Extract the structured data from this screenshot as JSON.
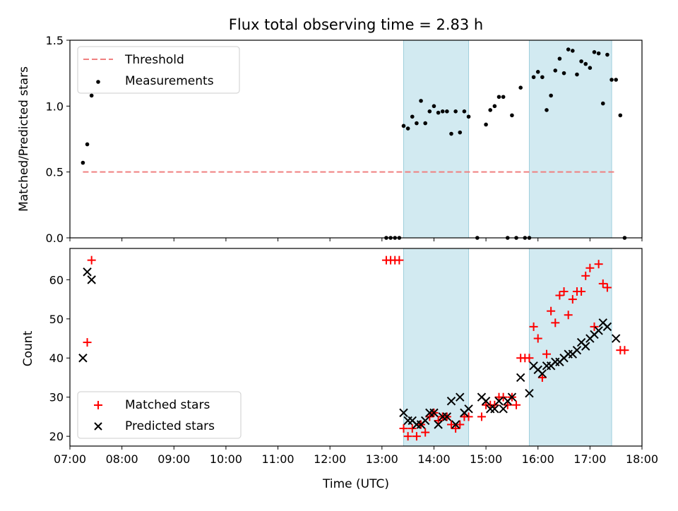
{
  "figure": {
    "title": "Flux total observing time = 2.83 h"
  },
  "colors": {
    "threshold": "#f08080",
    "matched": "#ff0000",
    "predicted": "#000000",
    "shade": "#add8e6"
  },
  "chart_data": [
    {
      "type": "scatter",
      "ylabel": "Matched/Predicted stars",
      "xlim": [
        "07:00",
        "18:00"
      ],
      "ylim": [
        0,
        1.5
      ],
      "yticks": [
        "0.0",
        "0.5",
        "1.0",
        "1.5"
      ],
      "grid": false,
      "legend": "top-left",
      "shaded_intervals": [
        [
          "13:25",
          "14:40"
        ],
        [
          "15:50",
          "17:25"
        ]
      ],
      "threshold": {
        "name": "Threshold",
        "y": 0.5,
        "x_range": [
          "07:15",
          "17:30"
        ]
      },
      "series": [
        {
          "name": "Measurements",
          "points": [
            [
              "07:15",
              0.57
            ],
            [
              "07:20",
              0.71
            ],
            [
              "07:25",
              1.08
            ],
            [
              "13:05",
              0.0
            ],
            [
              "13:10",
              0.0
            ],
            [
              "13:15",
              0.0
            ],
            [
              "13:20",
              0.0
            ],
            [
              "13:25",
              0.85
            ],
            [
              "13:30",
              0.83
            ],
            [
              "13:35",
              0.92
            ],
            [
              "13:40",
              0.87
            ],
            [
              "13:45",
              1.04
            ],
            [
              "13:50",
              0.87
            ],
            [
              "13:55",
              0.96
            ],
            [
              "14:00",
              1.0
            ],
            [
              "14:05",
              0.95
            ],
            [
              "14:10",
              0.96
            ],
            [
              "14:15",
              0.96
            ],
            [
              "14:20",
              0.79
            ],
            [
              "14:25",
              0.96
            ],
            [
              "14:30",
              0.8
            ],
            [
              "14:35",
              0.96
            ],
            [
              "14:40",
              0.92
            ],
            [
              "14:50",
              0.0
            ],
            [
              "15:00",
              0.86
            ],
            [
              "15:05",
              0.97
            ],
            [
              "15:10",
              1.0
            ],
            [
              "15:15",
              1.07
            ],
            [
              "15:20",
              1.07
            ],
            [
              "15:25",
              0.0
            ],
            [
              "15:30",
              0.93
            ],
            [
              "15:35",
              0.0
            ],
            [
              "15:40",
              1.14
            ],
            [
              "15:45",
              0.0
            ],
            [
              "15:50",
              0.0
            ],
            [
              "15:55",
              1.22
            ],
            [
              "16:00",
              1.26
            ],
            [
              "16:05",
              1.22
            ],
            [
              "16:10",
              0.97
            ],
            [
              "16:15",
              1.08
            ],
            [
              "16:20",
              1.27
            ],
            [
              "16:25",
              1.36
            ],
            [
              "16:30",
              1.25
            ],
            [
              "16:35",
              1.43
            ],
            [
              "16:40",
              1.42
            ],
            [
              "16:45",
              1.24
            ],
            [
              "16:50",
              1.34
            ],
            [
              "16:55",
              1.32
            ],
            [
              "17:00",
              1.29
            ],
            [
              "17:05",
              1.41
            ],
            [
              "17:10",
              1.4
            ],
            [
              "17:15",
              1.02
            ],
            [
              "17:20",
              1.39
            ],
            [
              "17:25",
              1.2
            ],
            [
              "17:30",
              1.2
            ],
            [
              "17:35",
              0.93
            ],
            [
              "17:40",
              0.0
            ]
          ]
        }
      ]
    },
    {
      "type": "scatter",
      "xlabel": "Time (UTC)",
      "ylabel": "Count",
      "xlim": [
        "07:00",
        "18:00"
      ],
      "ylim": [
        17.5,
        68
      ],
      "xticks": [
        "07:00",
        "08:00",
        "09:00",
        "10:00",
        "11:00",
        "12:00",
        "13:00",
        "14:00",
        "15:00",
        "16:00",
        "17:00",
        "18:00"
      ],
      "yticks": [
        "20",
        "30",
        "40",
        "50",
        "60"
      ],
      "grid": false,
      "legend": "bottom-left",
      "shaded_intervals": [
        [
          "13:25",
          "14:40"
        ],
        [
          "15:50",
          "17:25"
        ]
      ],
      "series": [
        {
          "name": "Matched stars",
          "marker": "plus",
          "points": [
            [
              "07:20",
              44
            ],
            [
              "07:25",
              65
            ],
            [
              "13:05",
              65
            ],
            [
              "13:10",
              65
            ],
            [
              "13:15",
              65
            ],
            [
              "13:20",
              65
            ],
            [
              "13:25",
              22
            ],
            [
              "13:30",
              20
            ],
            [
              "13:35",
              22
            ],
            [
              "13:40",
              20
            ],
            [
              "13:45",
              23
            ],
            [
              "13:50",
              21
            ],
            [
              "13:55",
              25
            ],
            [
              "14:00",
              26
            ],
            [
              "14:05",
              24
            ],
            [
              "14:10",
              25
            ],
            [
              "14:15",
              25
            ],
            [
              "14:20",
              23
            ],
            [
              "14:25",
              22
            ],
            [
              "14:30",
              23
            ],
            [
              "14:35",
              25
            ],
            [
              "14:40",
              25
            ],
            [
              "14:55",
              25
            ],
            [
              "15:00",
              28
            ],
            [
              "15:05",
              28
            ],
            [
              "15:10",
              28
            ],
            [
              "15:15",
              30
            ],
            [
              "15:20",
              30
            ],
            [
              "15:25",
              28
            ],
            [
              "15:30",
              30
            ],
            [
              "15:35",
              28
            ],
            [
              "15:40",
              40
            ],
            [
              "15:45",
              40
            ],
            [
              "15:50",
              40
            ],
            [
              "15:55",
              48
            ],
            [
              "16:00",
              45
            ],
            [
              "16:05",
              35
            ],
            [
              "16:10",
              41
            ],
            [
              "16:15",
              52
            ],
            [
              "16:20",
              49
            ],
            [
              "16:25",
              56
            ],
            [
              "16:30",
              57
            ],
            [
              "16:35",
              51
            ],
            [
              "16:40",
              55
            ],
            [
              "16:45",
              57
            ],
            [
              "16:50",
              57
            ],
            [
              "16:55",
              61
            ],
            [
              "17:00",
              63
            ],
            [
              "17:05",
              48
            ],
            [
              "17:10",
              64
            ],
            [
              "17:15",
              59
            ],
            [
              "17:20",
              58
            ],
            [
              "17:35",
              42
            ],
            [
              "17:40",
              42
            ]
          ]
        },
        {
          "name": "Predicted stars",
          "marker": "cross",
          "points": [
            [
              "07:15",
              40
            ],
            [
              "07:20",
              62
            ],
            [
              "07:25",
              60
            ],
            [
              "13:25",
              26
            ],
            [
              "13:30",
              24
            ],
            [
              "13:35",
              24
            ],
            [
              "13:40",
              23
            ],
            [
              "13:45",
              23
            ],
            [
              "13:50",
              24
            ],
            [
              "13:55",
              26
            ],
            [
              "14:00",
              26
            ],
            [
              "14:05",
              23
            ],
            [
              "14:10",
              25
            ],
            [
              "14:15",
              25
            ],
            [
              "14:20",
              29
            ],
            [
              "14:25",
              23
            ],
            [
              "14:30",
              30
            ],
            [
              "14:35",
              26
            ],
            [
              "14:40",
              27
            ],
            [
              "14:55",
              30
            ],
            [
              "15:00",
              29
            ],
            [
              "15:05",
              27
            ],
            [
              "15:10",
              27
            ],
            [
              "15:15",
              29
            ],
            [
              "15:20",
              27
            ],
            [
              "15:25",
              29
            ],
            [
              "15:30",
              30
            ],
            [
              "15:40",
              35
            ],
            [
              "15:50",
              31
            ],
            [
              "15:55",
              38
            ],
            [
              "16:00",
              37
            ],
            [
              "16:05",
              36
            ],
            [
              "16:10",
              38
            ],
            [
              "16:15",
              38
            ],
            [
              "16:20",
              39
            ],
            [
              "16:25",
              39
            ],
            [
              "16:30",
              40
            ],
            [
              "16:35",
              41
            ],
            [
              "16:40",
              41
            ],
            [
              "16:45",
              42
            ],
            [
              "16:50",
              44
            ],
            [
              "16:55",
              43
            ],
            [
              "17:00",
              45
            ],
            [
              "17:05",
              46
            ],
            [
              "17:10",
              47
            ],
            [
              "17:15",
              49
            ],
            [
              "17:20",
              48
            ],
            [
              "17:30",
              45
            ]
          ]
        }
      ]
    }
  ]
}
